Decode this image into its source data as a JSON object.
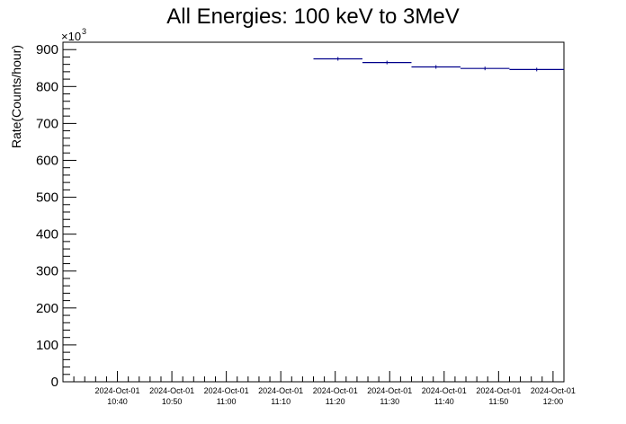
{
  "chart_data": {
    "type": "scatter",
    "title": "All Energies:  100 keV to 3MeV",
    "ylabel": "Rate(Counts/hour)",
    "xlabel": "",
    "y_multiplier": "×10",
    "y_multiplier_exp": "3",
    "ylim": [
      0,
      920
    ],
    "y_ticks": [
      0,
      100,
      200,
      300,
      400,
      500,
      600,
      700,
      800,
      900
    ],
    "x_range": [
      "10:30",
      "12:02"
    ],
    "x_ticks": [
      {
        "time": "10:40",
        "date": "2024-Oct-01"
      },
      {
        "time": "10:50",
        "date": "2024-Oct-01"
      },
      {
        "time": "11:00",
        "date": "2024-Oct-01"
      },
      {
        "time": "11:10",
        "date": "2024-Oct-01"
      },
      {
        "time": "11:20",
        "date": "2024-Oct-01"
      },
      {
        "time": "11:30",
        "date": "2024-Oct-01"
      },
      {
        "time": "11:40",
        "date": "2024-Oct-01"
      },
      {
        "time": "11:50",
        "date": "2024-Oct-01"
      },
      {
        "time": "12:00",
        "date": "2024-Oct-01"
      }
    ],
    "series": [
      {
        "color": "#00008b",
        "points": [
          {
            "x_start": "11:16",
            "x_end": "11:25",
            "y": 875
          },
          {
            "x_start": "11:25",
            "x_end": "11:34",
            "y": 865
          },
          {
            "x_start": "11:34",
            "x_end": "11:43",
            "y": 853
          },
          {
            "x_start": "11:43",
            "x_end": "11:52",
            "y": 849
          },
          {
            "x_start": "11:52",
            "x_end": "12:02",
            "y": 846
          }
        ]
      }
    ]
  }
}
